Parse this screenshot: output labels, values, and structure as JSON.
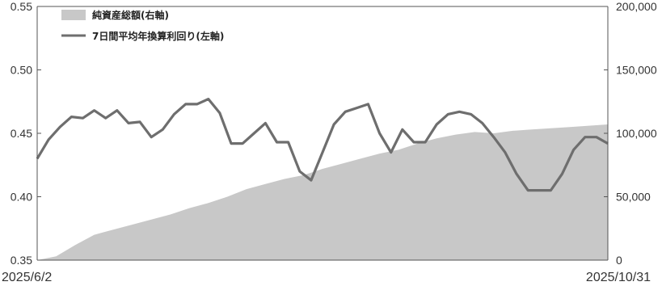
{
  "chart_data": {
    "type": "line",
    "x_range": [
      "2025/6/2",
      "2025/10/31"
    ],
    "x_tick_labels": [
      "2025/6/2",
      "2025/10/31"
    ],
    "left_axis": {
      "ticks": [
        "0.35",
        "0.40",
        "0.45",
        "0.50",
        "0.55"
      ],
      "ylim": [
        0.35,
        0.55
      ]
    },
    "right_axis": {
      "ticks": [
        "0",
        "50,000",
        "100,000",
        "150,000",
        "200,000"
      ],
      "ylim": [
        0,
        200000
      ]
    },
    "grid": false,
    "legend_position": "top-left",
    "series": [
      {
        "name": "純資産総額(右軸)",
        "kind": "area",
        "axis": "right",
        "color": "#c8c8c8",
        "x": [
          0,
          5,
          10,
          15,
          20,
          25,
          30,
          35,
          40,
          45,
          50,
          55,
          60,
          65,
          70,
          75,
          80,
          85,
          90,
          95,
          100,
          105,
          110,
          115,
          120,
          125,
          130,
          135,
          140,
          145,
          150
        ],
        "values": [
          0,
          3000,
          12000,
          20000,
          24000,
          28000,
          32000,
          36000,
          41000,
          45000,
          50000,
          56000,
          60000,
          64000,
          67000,
          72000,
          76000,
          80000,
          84000,
          87000,
          92000,
          96000,
          99000,
          101000,
          100000,
          102000,
          103000,
          104000,
          105000,
          106000,
          107000
        ]
      },
      {
        "name": "7日間平均年換算利回り(左軸)",
        "kind": "line",
        "axis": "left",
        "color": "#6e6e6e",
        "x": [
          0,
          3,
          6,
          9,
          12,
          15,
          18,
          21,
          24,
          27,
          30,
          33,
          36,
          39,
          42,
          45,
          48,
          51,
          54,
          57,
          60,
          63,
          66,
          69,
          72,
          75,
          78,
          81,
          84,
          87,
          90,
          93,
          96,
          99,
          102,
          105,
          108,
          111,
          114,
          117,
          120,
          123,
          126,
          129,
          132,
          135,
          138,
          141,
          144,
          147,
          150
        ],
        "values": [
          0.43,
          0.445,
          0.455,
          0.463,
          0.462,
          0.468,
          0.462,
          0.468,
          0.458,
          0.459,
          0.447,
          0.453,
          0.465,
          0.473,
          0.473,
          0.477,
          0.466,
          0.442,
          0.442,
          0.45,
          0.458,
          0.443,
          0.443,
          0.42,
          0.413,
          0.435,
          0.457,
          0.467,
          0.47,
          0.473,
          0.45,
          0.435,
          0.453,
          0.443,
          0.443,
          0.457,
          0.465,
          0.467,
          0.465,
          0.458,
          0.447,
          0.435,
          0.418,
          0.405,
          0.405,
          0.405,
          0.418,
          0.437,
          0.447,
          0.447,
          0.442
        ]
      }
    ]
  }
}
